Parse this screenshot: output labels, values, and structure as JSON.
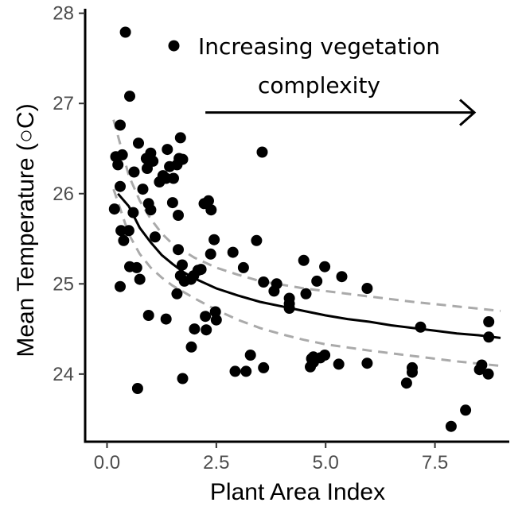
{
  "chart_data": {
    "type": "scatter",
    "xlabel": "Plant Area Index",
    "ylabel": "Mean Temperature (○C)",
    "xlim": [
      -0.5,
      9.2
    ],
    "ylim": [
      23.25,
      28.05
    ],
    "x_ticks": [
      0.0,
      2.5,
      5.0,
      7.5
    ],
    "x_tick_labels": [
      "0.0",
      "2.5",
      "5.0",
      "7.5"
    ],
    "y_ticks": [
      24,
      25,
      26,
      27,
      28
    ],
    "y_tick_labels": [
      "24",
      "25",
      "26",
      "27",
      "28"
    ],
    "grid": false,
    "annotation": {
      "line1": "Increasing vegetation",
      "line2": "complexity",
      "arrow_from": [
        2.25,
        26.9
      ],
      "arrow_to": [
        8.4,
        26.9
      ]
    },
    "colors": {
      "points": "#000000",
      "fit_line": "#000000",
      "confidence_band": "#aaaaaa",
      "axis": "#000000"
    },
    "fit": {
      "x": [
        0.25,
        0.5,
        0.75,
        1.0,
        1.25,
        1.5,
        1.75,
        2.0,
        2.5,
        3.0,
        3.5,
        4.0,
        4.5,
        5.0,
        5.5,
        6.0,
        6.5,
        7.0,
        7.5,
        8.0,
        8.5,
        9.0
      ],
      "y": [
        26.0,
        25.86,
        25.62,
        25.46,
        25.32,
        25.22,
        25.13,
        25.06,
        24.95,
        24.87,
        24.8,
        24.75,
        24.7,
        24.65,
        24.61,
        24.58,
        24.54,
        24.51,
        24.48,
        24.45,
        24.43,
        24.4
      ]
    },
    "ci_upper": {
      "x": [
        0.15,
        0.5,
        0.75,
        1.0,
        1.25,
        1.5,
        2.0,
        2.5,
        3.0,
        3.5,
        4.0,
        4.5,
        5.0,
        6.0,
        7.0,
        8.0,
        9.0
      ],
      "y": [
        26.82,
        26.2,
        25.92,
        25.72,
        25.56,
        25.44,
        25.29,
        25.18,
        25.1,
        25.03,
        24.99,
        24.95,
        24.92,
        24.86,
        24.8,
        24.75,
        24.7
      ]
    },
    "ci_lower": {
      "x": [
        0.15,
        0.5,
        0.75,
        1.0,
        1.25,
        1.5,
        2.0,
        2.5,
        3.0,
        3.5,
        4.0,
        4.5,
        5.0,
        6.0,
        7.0,
        8.0,
        9.0
      ],
      "y": [
        26.05,
        25.55,
        25.33,
        25.18,
        25.07,
        24.98,
        24.84,
        24.71,
        24.6,
        24.51,
        24.44,
        24.38,
        24.33,
        24.26,
        24.2,
        24.14,
        24.09
      ]
    },
    "points": [
      {
        "x": 0.42,
        "y": 27.79
      },
      {
        "x": 1.53,
        "y": 27.64
      },
      {
        "x": 0.52,
        "y": 27.08
      },
      {
        "x": 0.3,
        "y": 26.76
      },
      {
        "x": 1.68,
        "y": 26.62
      },
      {
        "x": 0.72,
        "y": 26.56
      },
      {
        "x": 3.55,
        "y": 26.46
      },
      {
        "x": 1.38,
        "y": 26.49
      },
      {
        "x": 1.0,
        "y": 26.45
      },
      {
        "x": 0.2,
        "y": 26.41
      },
      {
        "x": 0.35,
        "y": 26.43
      },
      {
        "x": 0.9,
        "y": 26.39
      },
      {
        "x": 1.05,
        "y": 26.36
      },
      {
        "x": 1.65,
        "y": 26.39
      },
      {
        "x": 1.73,
        "y": 26.38
      },
      {
        "x": 0.25,
        "y": 26.32
      },
      {
        "x": 0.92,
        "y": 26.28
      },
      {
        "x": 1.43,
        "y": 26.3
      },
      {
        "x": 1.6,
        "y": 26.32
      },
      {
        "x": 0.62,
        "y": 26.24
      },
      {
        "x": 1.28,
        "y": 26.2
      },
      {
        "x": 1.35,
        "y": 26.17
      },
      {
        "x": 1.52,
        "y": 26.17
      },
      {
        "x": 1.2,
        "y": 26.13
      },
      {
        "x": 0.3,
        "y": 26.08
      },
      {
        "x": 0.82,
        "y": 26.05
      },
      {
        "x": 2.32,
        "y": 25.92
      },
      {
        "x": 2.22,
        "y": 25.89
      },
      {
        "x": 0.95,
        "y": 25.89
      },
      {
        "x": 1.5,
        "y": 25.9
      },
      {
        "x": 0.17,
        "y": 25.83
      },
      {
        "x": 0.6,
        "y": 25.79
      },
      {
        "x": 1.0,
        "y": 25.82
      },
      {
        "x": 2.38,
        "y": 25.82
      },
      {
        "x": 1.63,
        "y": 25.76
      },
      {
        "x": 0.32,
        "y": 25.59
      },
      {
        "x": 0.5,
        "y": 25.59
      },
      {
        "x": 1.1,
        "y": 25.52
      },
      {
        "x": 0.38,
        "y": 25.48
      },
      {
        "x": 2.45,
        "y": 25.49
      },
      {
        "x": 3.42,
        "y": 25.48
      },
      {
        "x": 1.63,
        "y": 25.38
      },
      {
        "x": 2.88,
        "y": 25.35
      },
      {
        "x": 2.37,
        "y": 25.33
      },
      {
        "x": 4.5,
        "y": 25.26
      },
      {
        "x": 1.72,
        "y": 25.21
      },
      {
        "x": 0.52,
        "y": 25.19
      },
      {
        "x": 0.68,
        "y": 25.18
      },
      {
        "x": 2.08,
        "y": 25.15
      },
      {
        "x": 2.15,
        "y": 25.16
      },
      {
        "x": 3.12,
        "y": 25.18
      },
      {
        "x": 4.98,
        "y": 25.19
      },
      {
        "x": 1.68,
        "y": 25.09
      },
      {
        "x": 1.98,
        "y": 25.09
      },
      {
        "x": 1.77,
        "y": 25.03
      },
      {
        "x": 1.92,
        "y": 25.05
      },
      {
        "x": 0.75,
        "y": 25.05
      },
      {
        "x": 5.37,
        "y": 25.08
      },
      {
        "x": 3.58,
        "y": 25.02
      },
      {
        "x": 3.88,
        "y": 25.0
      },
      {
        "x": 4.8,
        "y": 25.03
      },
      {
        "x": 0.3,
        "y": 24.97
      },
      {
        "x": 5.95,
        "y": 24.95
      },
      {
        "x": 3.82,
        "y": 24.92
      },
      {
        "x": 1.6,
        "y": 24.89
      },
      {
        "x": 4.55,
        "y": 24.89
      },
      {
        "x": 4.17,
        "y": 24.84
      },
      {
        "x": 4.17,
        "y": 24.78
      },
      {
        "x": 4.17,
        "y": 24.73
      },
      {
        "x": 0.95,
        "y": 24.65
      },
      {
        "x": 2.25,
        "y": 24.64
      },
      {
        "x": 2.48,
        "y": 24.69
      },
      {
        "x": 1.35,
        "y": 24.61
      },
      {
        "x": 2.5,
        "y": 24.6
      },
      {
        "x": 8.73,
        "y": 24.58
      },
      {
        "x": 7.17,
        "y": 24.52
      },
      {
        "x": 2.0,
        "y": 24.5
      },
      {
        "x": 2.27,
        "y": 24.49
      },
      {
        "x": 8.73,
        "y": 24.41
      },
      {
        "x": 1.93,
        "y": 24.3
      },
      {
        "x": 3.28,
        "y": 24.21
      },
      {
        "x": 4.98,
        "y": 24.21
      },
      {
        "x": 4.68,
        "y": 24.17
      },
      {
        "x": 4.72,
        "y": 24.19
      },
      {
        "x": 4.88,
        "y": 24.18
      },
      {
        "x": 4.72,
        "y": 24.13
      },
      {
        "x": 5.95,
        "y": 24.12
      },
      {
        "x": 5.3,
        "y": 24.11
      },
      {
        "x": 8.57,
        "y": 24.1
      },
      {
        "x": 4.65,
        "y": 24.08
      },
      {
        "x": 3.58,
        "y": 24.07
      },
      {
        "x": 6.98,
        "y": 24.07
      },
      {
        "x": 8.52,
        "y": 24.05
      },
      {
        "x": 2.93,
        "y": 24.03
      },
      {
        "x": 3.18,
        "y": 24.03
      },
      {
        "x": 6.98,
        "y": 24.02
      },
      {
        "x": 8.72,
        "y": 24.0
      },
      {
        "x": 1.73,
        "y": 23.95
      },
      {
        "x": 6.85,
        "y": 23.9
      },
      {
        "x": 0.7,
        "y": 23.84
      },
      {
        "x": 8.2,
        "y": 23.6
      },
      {
        "x": 7.87,
        "y": 23.42
      }
    ]
  }
}
